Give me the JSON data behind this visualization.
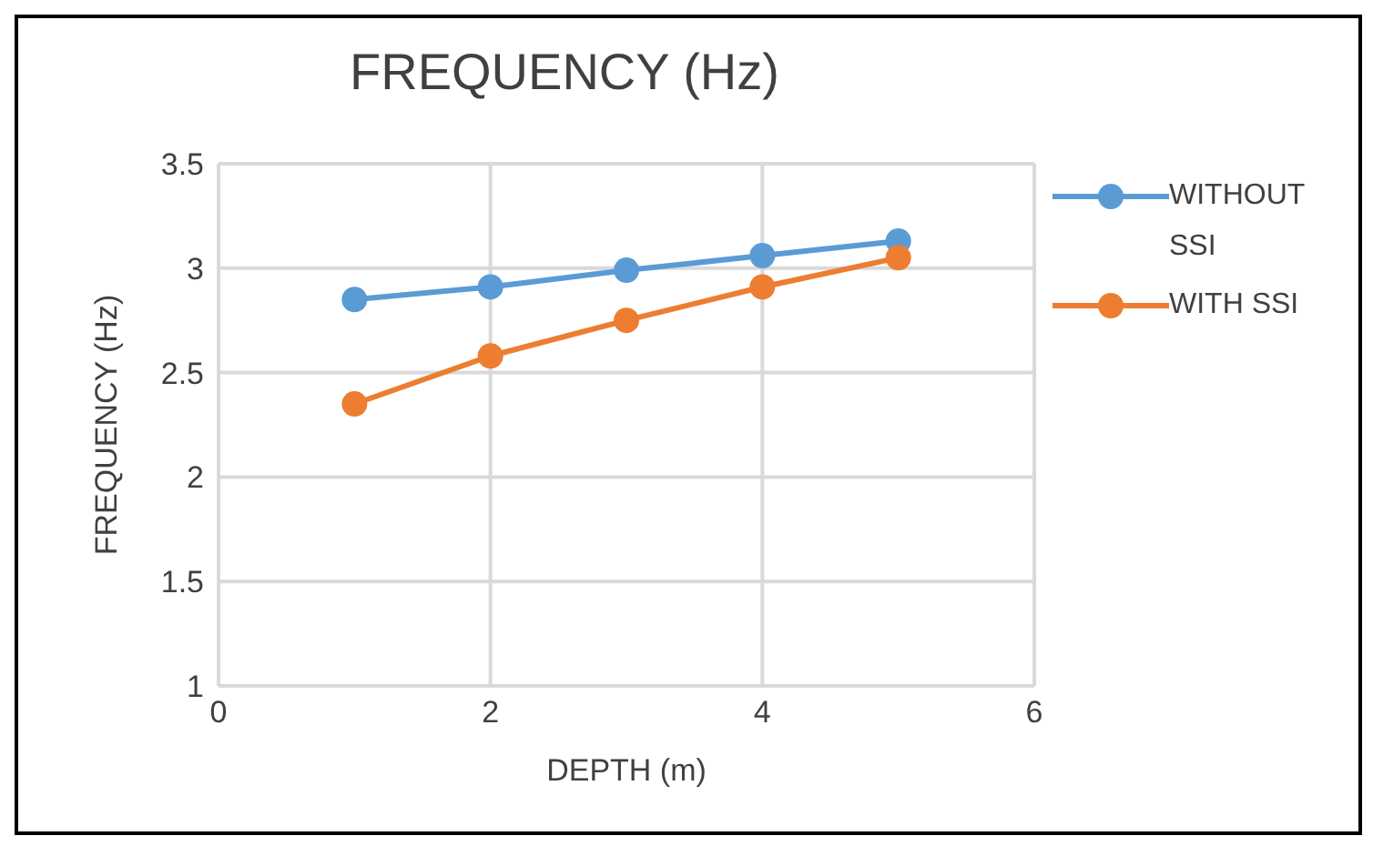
{
  "chart_data": {
    "type": "line",
    "title": "FREQUENCY (Hz)",
    "xlabel": "DEPTH (m)",
    "ylabel": "FREQUENCY  (Hz)",
    "x": [
      1,
      2,
      3,
      4,
      5
    ],
    "series": [
      {
        "name": "WITHOUT SSI",
        "color": "#5b9bd5",
        "values": [
          2.85,
          2.91,
          2.99,
          3.06,
          3.13
        ]
      },
      {
        "name": "WITH SSI",
        "color": "#ed7d31",
        "values": [
          2.35,
          2.58,
          2.75,
          2.91,
          3.05
        ]
      }
    ],
    "xlim": [
      0,
      6
    ],
    "xticks": [
      0,
      2,
      4,
      6
    ],
    "ylim": [
      1,
      3.5
    ],
    "yticks": [
      1,
      1.5,
      2,
      2.5,
      3,
      3.5
    ],
    "grid": true,
    "legend": "right",
    "marker": "circle",
    "line_style": "solid"
  }
}
